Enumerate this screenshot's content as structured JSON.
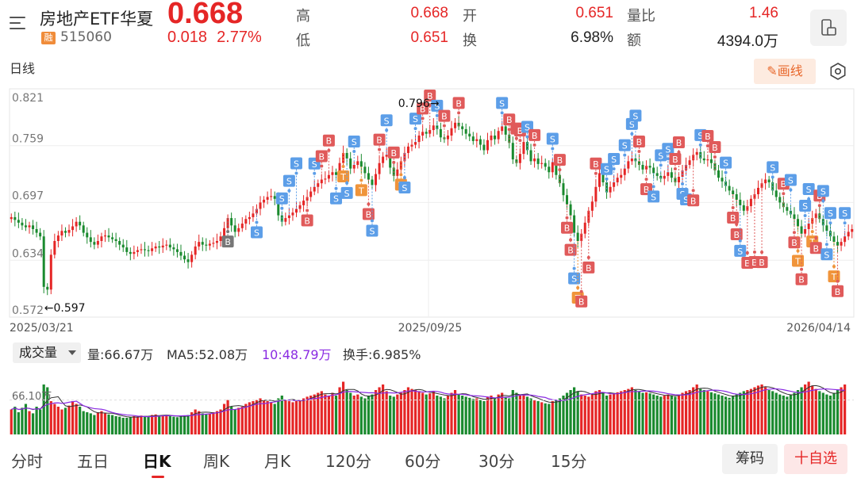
{
  "header": {
    "name": "房地产ETF华夏",
    "badge": "融",
    "code": "515060",
    "price": "0.668",
    "change": "0.018",
    "change_pct": "2.77%"
  },
  "quote": {
    "high_label": "高",
    "high": "0.668",
    "low_label": "低",
    "low": "0.651",
    "open_label": "开",
    "open": "0.651",
    "turnover_label": "换",
    "turnover": "6.98%",
    "vol_ratio_label": "量比",
    "vol_ratio": "1.46",
    "amount_label": "额",
    "amount": "4394.0万"
  },
  "period_label": "日线",
  "draw_label": "画线",
  "colors": {
    "up": "#e52626",
    "down": "#1a8a2e",
    "buy": "#e05a5a",
    "sell": "#5c9ee8",
    "t": "#f0943a",
    "grey": "#777777",
    "ma5": "#333333",
    "ma10": "#8a2be2"
  },
  "chart_data": {
    "type": "candlestick",
    "ylim": [
      0.572,
      0.821
    ],
    "yticks": [
      "0.821",
      "0.759",
      "0.697",
      "0.634",
      "0.572"
    ],
    "xticks": [
      "2025/03/21",
      "2025/09/25",
      "2026/04/14"
    ],
    "max_annotation": "0.796→",
    "min_annotation": "←0.597",
    "max_value": 0.796,
    "min_value": 0.597,
    "close_series": [
      0.681,
      0.678,
      0.675,
      0.672,
      0.67,
      0.672,
      0.668,
      0.664,
      0.66,
      0.605,
      0.602,
      0.64,
      0.655,
      0.661,
      0.666,
      0.664,
      0.667,
      0.671,
      0.676,
      0.672,
      0.664,
      0.659,
      0.654,
      0.651,
      0.655,
      0.66,
      0.661,
      0.659,
      0.657,
      0.655,
      0.651,
      0.648,
      0.643,
      0.641,
      0.643,
      0.645,
      0.646,
      0.645,
      0.644,
      0.647,
      0.649,
      0.648,
      0.65,
      0.651,
      0.648,
      0.646,
      0.643,
      0.639,
      0.635,
      0.632,
      0.64,
      0.649,
      0.654,
      0.651,
      0.65,
      0.652,
      0.653,
      0.655,
      0.66,
      0.669,
      0.68,
      0.672,
      0.665,
      0.669,
      0.674,
      0.679,
      0.681,
      0.685,
      0.69,
      0.697,
      0.7,
      0.703,
      0.704,
      0.701,
      0.683,
      0.676,
      0.68,
      0.683,
      0.686,
      0.69,
      0.694,
      0.699,
      0.703,
      0.709,
      0.714,
      0.718,
      0.722,
      0.723,
      0.727,
      0.73,
      0.727,
      0.74,
      0.751,
      0.745,
      0.734,
      0.738,
      0.742,
      0.736,
      0.729,
      0.722,
      0.716,
      0.728,
      0.74,
      0.747,
      0.749,
      0.735,
      0.726,
      0.733,
      0.742,
      0.751,
      0.758,
      0.76,
      0.763,
      0.77,
      0.774,
      0.772,
      0.776,
      0.781,
      0.777,
      0.768,
      0.766,
      0.77,
      0.778,
      0.784,
      0.78,
      0.777,
      0.772,
      0.769,
      0.764,
      0.766,
      0.76,
      0.754,
      0.765,
      0.77,
      0.766,
      0.775,
      0.78,
      0.771,
      0.762,
      0.744,
      0.74,
      0.75,
      0.763,
      0.754,
      0.742,
      0.745,
      0.739,
      0.74,
      0.736,
      0.73,
      0.741,
      0.727,
      0.718,
      0.705,
      0.695,
      0.683,
      0.664,
      0.655,
      0.663,
      0.675,
      0.688,
      0.698,
      0.714,
      0.729,
      0.719,
      0.708,
      0.714,
      0.719,
      0.724,
      0.727,
      0.734,
      0.742,
      0.745,
      0.742,
      0.738,
      0.733,
      0.737,
      0.735,
      0.729,
      0.726,
      0.723,
      0.726,
      0.73,
      0.724,
      0.719,
      0.725,
      0.732,
      0.738,
      0.743,
      0.749,
      0.752,
      0.745,
      0.743,
      0.744,
      0.74,
      0.732,
      0.724,
      0.72,
      0.715,
      0.71,
      0.706,
      0.7,
      0.694,
      0.688,
      0.693,
      0.701,
      0.706,
      0.713,
      0.718,
      0.722,
      0.719,
      0.71,
      0.703,
      0.697,
      0.692,
      0.688,
      0.684,
      0.679,
      0.671,
      0.663,
      0.668,
      0.674,
      0.68,
      0.685,
      0.679,
      0.672,
      0.666,
      0.66,
      0.654,
      0.65,
      0.654,
      0.66,
      0.665,
      0.668
    ],
    "volume_mark_label": "66.10万",
    "volume": [
      0.45,
      0.5,
      0.4,
      0.48,
      0.55,
      0.42,
      0.38,
      0.5,
      0.45,
      0.9,
      0.85,
      0.6,
      0.55,
      0.5,
      0.45,
      0.48,
      0.52,
      0.6,
      0.55,
      0.5,
      0.42,
      0.4,
      0.38,
      0.35,
      0.4,
      0.42,
      0.38,
      0.36,
      0.35,
      0.33,
      0.32,
      0.3,
      0.3,
      0.31,
      0.33,
      0.32,
      0.34,
      0.33,
      0.32,
      0.35,
      0.36,
      0.34,
      0.35,
      0.34,
      0.33,
      0.32,
      0.31,
      0.33,
      0.34,
      0.35,
      0.4,
      0.45,
      0.42,
      0.38,
      0.36,
      0.38,
      0.4,
      0.42,
      0.45,
      0.55,
      0.62,
      0.5,
      0.45,
      0.48,
      0.5,
      0.55,
      0.58,
      0.6,
      0.62,
      0.65,
      0.62,
      0.6,
      0.58,
      0.55,
      0.65,
      0.7,
      0.62,
      0.6,
      0.58,
      0.6,
      0.62,
      0.65,
      0.68,
      0.7,
      0.72,
      0.75,
      0.78,
      0.72,
      0.7,
      0.75,
      0.7,
      0.85,
      0.95,
      0.8,
      0.75,
      0.7,
      0.72,
      0.68,
      0.65,
      0.7,
      0.72,
      0.8,
      0.85,
      0.9,
      0.78,
      0.7,
      0.68,
      0.72,
      0.75,
      0.8,
      0.85,
      0.82,
      0.8,
      0.78,
      0.75,
      0.72,
      0.74,
      0.78,
      0.7,
      0.68,
      0.65,
      0.7,
      0.75,
      0.8,
      0.72,
      0.7,
      0.68,
      0.66,
      0.64,
      0.65,
      0.62,
      0.6,
      0.68,
      0.7,
      0.66,
      0.72,
      0.75,
      0.68,
      0.65,
      0.8,
      0.75,
      0.7,
      0.72,
      0.68,
      0.65,
      0.62,
      0.6,
      0.58,
      0.56,
      0.55,
      0.6,
      0.62,
      0.65,
      0.7,
      0.75,
      0.8,
      0.85,
      0.78,
      0.72,
      0.7,
      0.68,
      0.72,
      0.78,
      0.8,
      0.75,
      0.7,
      0.72,
      0.74,
      0.76,
      0.78,
      0.8,
      0.82,
      0.85,
      0.8,
      0.78,
      0.75,
      0.76,
      0.74,
      0.72,
      0.7,
      0.68,
      0.7,
      0.72,
      0.7,
      0.68,
      0.72,
      0.75,
      0.78,
      0.8,
      0.85,
      0.9,
      0.82,
      0.8,
      0.78,
      0.76,
      0.74,
      0.72,
      0.7,
      0.68,
      0.66,
      0.7,
      0.72,
      0.75,
      0.78,
      0.8,
      0.82,
      0.85,
      0.88,
      0.9,
      0.85,
      0.8,
      0.78,
      0.75,
      0.72,
      0.7,
      0.68,
      0.72,
      0.75,
      0.8,
      0.85,
      0.9,
      0.95,
      0.88,
      0.82,
      0.78,
      0.75,
      0.72,
      0.7,
      0.75,
      0.8,
      0.85,
      0.9
    ],
    "signals": [
      {
        "i": 60,
        "label": "B",
        "kind": "grey",
        "pos": "below",
        "off": 0
      },
      {
        "i": 68,
        "label": "S",
        "kind": "sell",
        "pos": "below",
        "off": 0
      },
      {
        "i": 75,
        "label": "S",
        "kind": "sell",
        "pos": "above",
        "off": 0
      },
      {
        "i": 77,
        "label": "S",
        "kind": "sell",
        "pos": "above",
        "off": 1
      },
      {
        "i": 79,
        "label": "S",
        "kind": "sell",
        "pos": "above",
        "off": 2
      },
      {
        "i": 82,
        "label": "B",
        "kind": "buy",
        "pos": "below",
        "off": 0
      },
      {
        "i": 84,
        "label": "S",
        "kind": "sell",
        "pos": "above",
        "off": 0
      },
      {
        "i": 86,
        "label": "B",
        "kind": "buy",
        "pos": "above",
        "off": 0
      },
      {
        "i": 88,
        "label": "B",
        "kind": "buy",
        "pos": "above",
        "off": 1
      },
      {
        "i": 90,
        "label": "S",
        "kind": "sell",
        "pos": "below",
        "off": 0
      },
      {
        "i": 92,
        "label": "T",
        "kind": "t",
        "pos": "below",
        "off": 0
      },
      {
        "i": 93,
        "label": "S",
        "kind": "sell",
        "pos": "below",
        "off": 1
      },
      {
        "i": 95,
        "label": "S",
        "kind": "sell",
        "pos": "above",
        "off": 0
      },
      {
        "i": 97,
        "label": "T",
        "kind": "t",
        "pos": "below",
        "off": 0
      },
      {
        "i": 99,
        "label": "B",
        "kind": "buy",
        "pos": "below",
        "off": 1
      },
      {
        "i": 100,
        "label": "S",
        "kind": "sell",
        "pos": "below",
        "off": 2
      },
      {
        "i": 102,
        "label": "B",
        "kind": "buy",
        "pos": "above",
        "off": 0
      },
      {
        "i": 104,
        "label": "S",
        "kind": "sell",
        "pos": "above",
        "off": 1
      },
      {
        "i": 106,
        "label": "B",
        "kind": "buy",
        "pos": "above",
        "off": 0
      },
      {
        "i": 108,
        "label": "T",
        "kind": "t",
        "pos": "below",
        "off": 0
      },
      {
        "i": 109,
        "label": "S",
        "kind": "sell",
        "pos": "below",
        "off": 1
      },
      {
        "i": 112,
        "label": "S",
        "kind": "sell",
        "pos": "above",
        "off": 0
      },
      {
        "i": 114,
        "label": "B",
        "kind": "buy",
        "pos": "above",
        "off": 0
      },
      {
        "i": 116,
        "label": "B",
        "kind": "buy",
        "pos": "above",
        "off": 1
      },
      {
        "i": 118,
        "label": "S",
        "kind": "sell",
        "pos": "above",
        "off": 0
      },
      {
        "i": 120,
        "label": "B",
        "kind": "buy",
        "pos": "above",
        "off": 0
      },
      {
        "i": 124,
        "label": "B",
        "kind": "buy",
        "pos": "above",
        "off": 0
      },
      {
        "i": 136,
        "label": "S",
        "kind": "sell",
        "pos": "above",
        "off": 0
      },
      {
        "i": 138,
        "label": "B",
        "kind": "buy",
        "pos": "above",
        "off": 0
      },
      {
        "i": 140,
        "label": "B",
        "kind": "buy",
        "pos": "above",
        "off": 1
      },
      {
        "i": 141,
        "label": "B",
        "kind": "buy",
        "pos": "above",
        "off": 0
      },
      {
        "i": 143,
        "label": "S",
        "kind": "sell",
        "pos": "above",
        "off": 0
      },
      {
        "i": 145,
        "label": "B",
        "kind": "buy",
        "pos": "above",
        "off": 0
      },
      {
        "i": 150,
        "label": "S",
        "kind": "sell",
        "pos": "above",
        "off": 0
      },
      {
        "i": 152,
        "label": "B",
        "kind": "buy",
        "pos": "above",
        "off": 0
      },
      {
        "i": 154,
        "label": "B",
        "kind": "buy",
        "pos": "below",
        "off": 0
      },
      {
        "i": 155,
        "label": "B",
        "kind": "buy",
        "pos": "below",
        "off": 1
      },
      {
        "i": 156,
        "label": "S",
        "kind": "sell",
        "pos": "below",
        "off": 2
      },
      {
        "i": 157,
        "label": "T",
        "kind": "t",
        "pos": "below",
        "off": 3
      },
      {
        "i": 158,
        "label": "B",
        "kind": "buy",
        "pos": "below",
        "off": 4
      },
      {
        "i": 160,
        "label": "B",
        "kind": "buy",
        "pos": "below",
        "off": 3
      },
      {
        "i": 162,
        "label": "B",
        "kind": "buy",
        "pos": "above",
        "off": 0
      },
      {
        "i": 165,
        "label": "S",
        "kind": "sell",
        "pos": "above",
        "off": 0
      },
      {
        "i": 167,
        "label": "S",
        "kind": "sell",
        "pos": "above",
        "off": 0
      },
      {
        "i": 170,
        "label": "S",
        "kind": "sell",
        "pos": "above",
        "off": 0
      },
      {
        "i": 172,
        "label": "S",
        "kind": "sell",
        "pos": "above",
        "off": 1
      },
      {
        "i": 173,
        "label": "S",
        "kind": "sell",
        "pos": "above",
        "off": 2
      },
      {
        "i": 174,
        "label": "B",
        "kind": "buy",
        "pos": "above",
        "off": 0
      },
      {
        "i": 176,
        "label": "B",
        "kind": "buy",
        "pos": "below",
        "off": 0
      },
      {
        "i": 178,
        "label": "S",
        "kind": "sell",
        "pos": "below",
        "off": 0
      },
      {
        "i": 180,
        "label": "S",
        "kind": "sell",
        "pos": "above",
        "off": 0
      },
      {
        "i": 182,
        "label": "S",
        "kind": "sell",
        "pos": "above",
        "off": 0
      },
      {
        "i": 184,
        "label": "B",
        "kind": "buy",
        "pos": "above",
        "off": 0
      },
      {
        "i": 185,
        "label": "B",
        "kind": "buy",
        "pos": "above",
        "off": 1
      },
      {
        "i": 186,
        "label": "S",
        "kind": "sell",
        "pos": "below",
        "off": 0
      },
      {
        "i": 187,
        "label": "S",
        "kind": "sell",
        "pos": "below",
        "off": 1
      },
      {
        "i": 189,
        "label": "B",
        "kind": "buy",
        "pos": "below",
        "off": 2
      },
      {
        "i": 191,
        "label": "S",
        "kind": "sell",
        "pos": "above",
        "off": 0
      },
      {
        "i": 193,
        "label": "B",
        "kind": "buy",
        "pos": "above",
        "off": 0
      },
      {
        "i": 195,
        "label": "B",
        "kind": "buy",
        "pos": "above",
        "off": 0
      },
      {
        "i": 198,
        "label": "S",
        "kind": "sell",
        "pos": "above",
        "off": 0
      },
      {
        "i": 200,
        "label": "B",
        "kind": "buy",
        "pos": "below",
        "off": 0
      },
      {
        "i": 201,
        "label": "B",
        "kind": "buy",
        "pos": "below",
        "off": 1
      },
      {
        "i": 202,
        "label": "S",
        "kind": "sell",
        "pos": "below",
        "off": 2
      },
      {
        "i": 204,
        "label": "B",
        "kind": "buy",
        "pos": "below",
        "off": 3
      },
      {
        "i": 206,
        "label": "B",
        "kind": "buy",
        "pos": "below",
        "off": 4
      },
      {
        "i": 208,
        "label": "B",
        "kind": "buy",
        "pos": "below",
        "off": 5
      },
      {
        "i": 211,
        "label": "S",
        "kind": "sell",
        "pos": "above",
        "off": 0
      },
      {
        "i": 214,
        "label": "B",
        "kind": "buy",
        "pos": "above",
        "off": 0
      },
      {
        "i": 216,
        "label": "S",
        "kind": "sell",
        "pos": "above",
        "off": 1
      },
      {
        "i": 217,
        "label": "B",
        "kind": "buy",
        "pos": "below",
        "off": 0
      },
      {
        "i": 218,
        "label": "T",
        "kind": "t",
        "pos": "below",
        "off": 1
      },
      {
        "i": 219,
        "label": "B",
        "kind": "buy",
        "pos": "below",
        "off": 2
      },
      {
        "i": 220,
        "label": "S",
        "kind": "sell",
        "pos": "above",
        "off": 0
      },
      {
        "i": 221,
        "label": "S",
        "kind": "sell",
        "pos": "above",
        "off": 1
      },
      {
        "i": 222,
        "label": "T",
        "kind": "t",
        "pos": "below",
        "off": 0
      },
      {
        "i": 223,
        "label": "B",
        "kind": "buy",
        "pos": "below",
        "off": 1
      },
      {
        "i": 224,
        "label": "B",
        "kind": "buy",
        "pos": "above",
        "off": 0
      },
      {
        "i": 225,
        "label": "S",
        "kind": "sell",
        "pos": "above",
        "off": 1
      },
      {
        "i": 226,
        "label": "S",
        "kind": "sell",
        "pos": "below",
        "off": 0
      },
      {
        "i": 227,
        "label": "S",
        "kind": "sell",
        "pos": "above",
        "off": 0
      },
      {
        "i": 228,
        "label": "T",
        "kind": "t",
        "pos": "below",
        "off": 1
      },
      {
        "i": 229,
        "label": "B",
        "kind": "buy",
        "pos": "below",
        "off": 2
      },
      {
        "i": 231,
        "label": "S",
        "kind": "sell",
        "pos": "above",
        "off": 0
      }
    ]
  },
  "volume_header": {
    "selector": "成交量",
    "vol": "量:66.67万",
    "ma5": "MA5:52.08万",
    "ma10": "10:48.79万",
    "turnover": "换手:6.985%"
  },
  "tabs": [
    "分时",
    "五日",
    "日K",
    "周K",
    "月K",
    "120分",
    "60分",
    "30分",
    "15分"
  ],
  "chip_label": "筹码",
  "fav_label": "十自选"
}
